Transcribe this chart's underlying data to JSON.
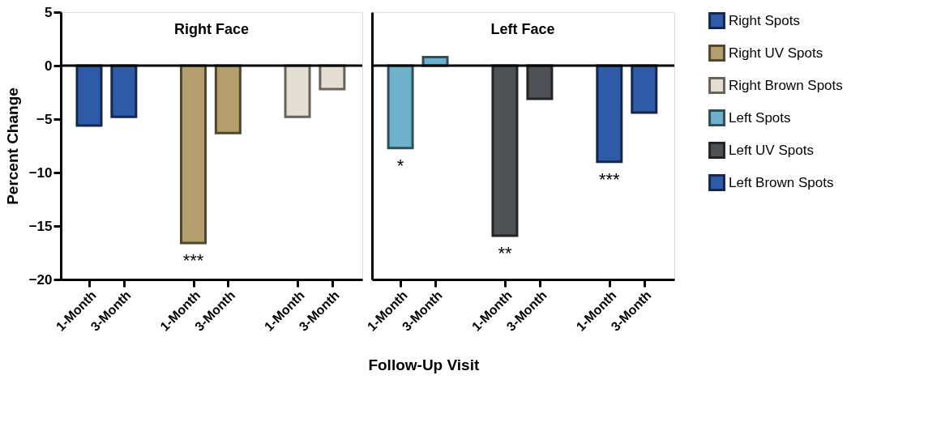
{
  "chart_data": [
    {
      "type": "bar",
      "title": "Right Face",
      "ylabel": "Percent Change",
      "annotations": [
        "Follow-Up Visit"
      ],
      "categories": [
        "1-Month",
        "3-Month",
        null,
        "1-Month",
        "3-Month",
        null,
        "1-Month",
        "3-Month"
      ],
      "ylim": [
        -20,
        5
      ],
      "yticks": [
        5,
        0,
        -5,
        -10,
        -15,
        -20
      ],
      "grid": false,
      "legend": "right",
      "ref_lines": [
        {
          "axis": "y",
          "value": 0
        }
      ],
      "series": [
        {
          "name": "Right Spots",
          "color": "#2f5aa8",
          "values": [
            -5.6,
            -4.8,
            null,
            null,
            null,
            null,
            null,
            null
          ]
        },
        {
          "name": "Right UV Spots",
          "color": "#b59e6e",
          "values": [
            null,
            null,
            null,
            -16.6,
            -6.3,
            null,
            null,
            null
          ],
          "value_labels": [
            null,
            null,
            null,
            "***",
            null,
            null,
            null,
            null
          ]
        },
        {
          "name": "Right Brown Spots",
          "color": "#e3ded1",
          "values": [
            null,
            null,
            null,
            null,
            null,
            null,
            -4.8,
            -2.2
          ]
        }
      ]
    },
    {
      "type": "bar",
      "title": "Left Face",
      "categories": [
        "1-Month",
        "3-Month",
        null,
        "1-Month",
        "3-Month",
        null,
        "1-Month",
        "3-Month"
      ],
      "ylim": [
        -20,
        5
      ],
      "yticks": [
        5,
        0,
        -5,
        -10,
        -15,
        -20
      ],
      "grid": false,
      "legend": "right",
      "tick_labels": "x",
      "ref_lines": [
        {
          "axis": "y",
          "value": 0
        }
      ],
      "series": [
        {
          "name": "Left Spots",
          "color": "#6fb0cb",
          "values": [
            -7.7,
            0.8,
            null,
            null,
            null,
            null,
            null,
            null
          ],
          "value_labels": [
            "*",
            null,
            null,
            null,
            null,
            null,
            null,
            null
          ]
        },
        {
          "name": "Left UV Spots",
          "color": "#4e5156",
          "values": [
            null,
            null,
            null,
            -15.9,
            -3.1,
            null,
            null,
            null
          ],
          "value_labels": [
            null,
            null,
            null,
            "**",
            null,
            null,
            null,
            null
          ]
        },
        {
          "name": "Left Brown Spots",
          "color": "#2f5aa8",
          "values": [
            null,
            null,
            null,
            null,
            null,
            null,
            -9.0,
            -4.4
          ],
          "value_labels": [
            null,
            null,
            null,
            null,
            null,
            null,
            "***",
            null
          ]
        }
      ]
    }
  ]
}
